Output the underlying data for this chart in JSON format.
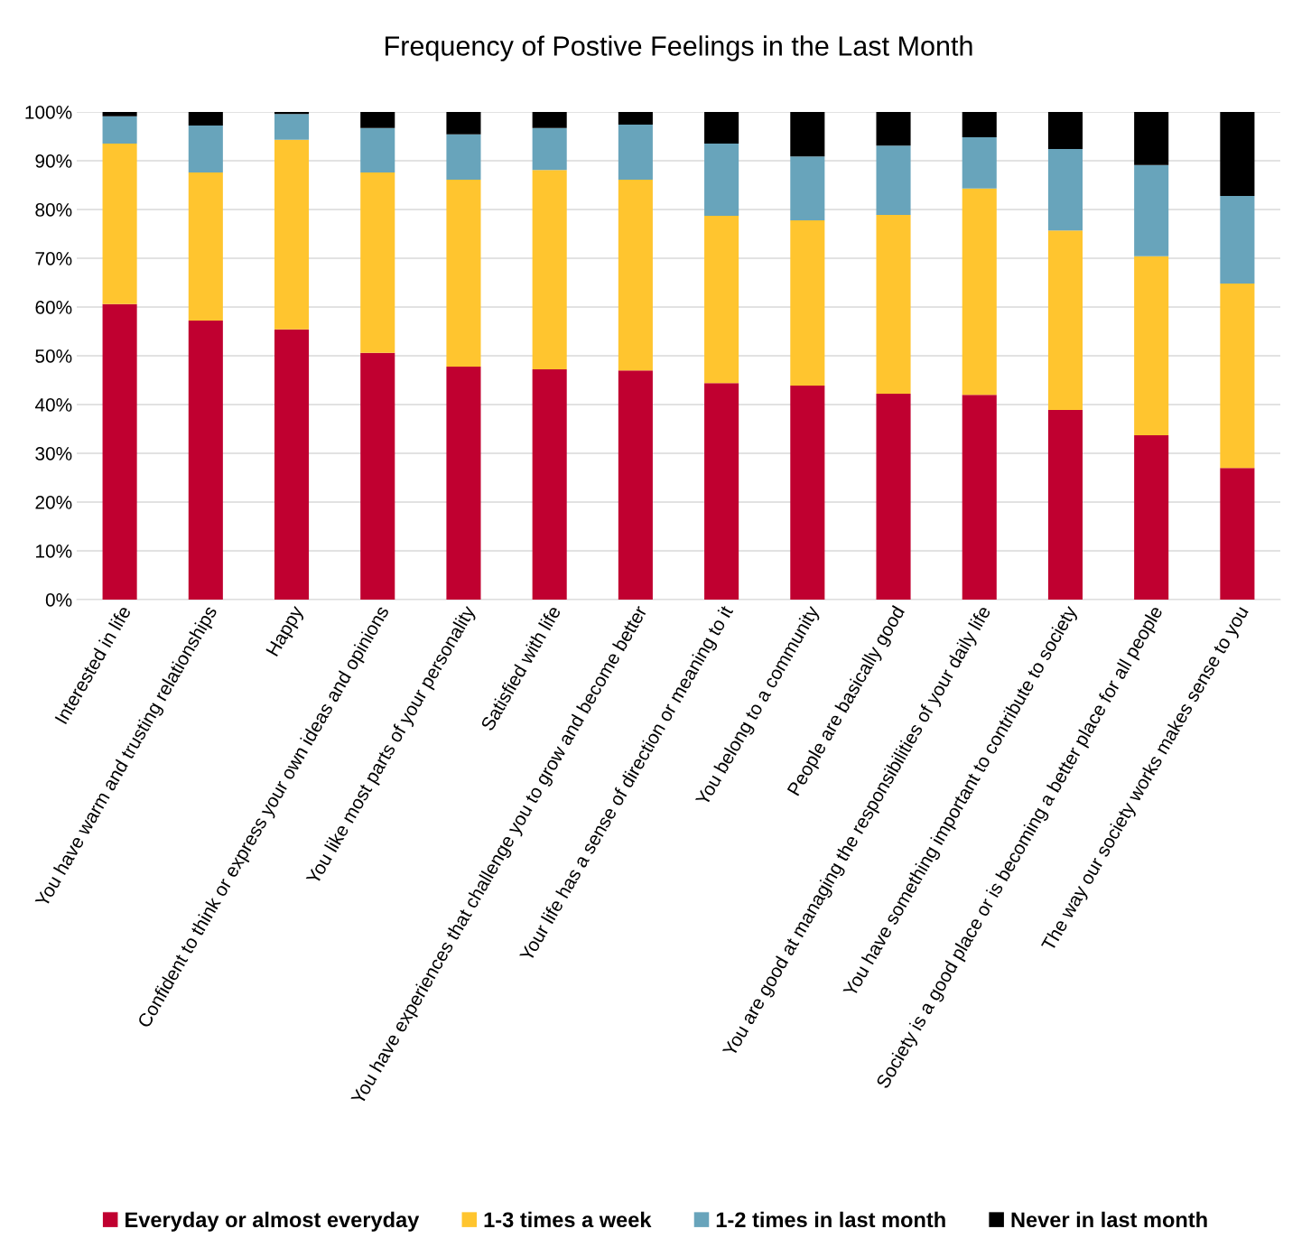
{
  "chart_data": {
    "type": "bar",
    "title": "Frequency of Postive Feelings in the Last Month",
    "stacked": true,
    "categories": [
      "Interested in life",
      "You have warm and trusting relationships",
      "Happy",
      "Confident to think or express your own ideas and opinions",
      "You like most parts of your personality",
      "Satisfied with life",
      "You have experiences that challenge you to grow and become better",
      "Your life has a sense of direction or meaning to it",
      "You belong to a community",
      "People are basically good",
      "You are good at managing the responsibilities of your daily life",
      "You have something important to contribute to society",
      "Society is a good place or is becoming a better place for all people",
      "The way our society works makes sense to you"
    ],
    "series": [
      {
        "name": "Everyday or almost everyday",
        "color": "#c00030",
        "values": [
          60.6,
          57.2,
          55.4,
          50.6,
          47.8,
          47.2,
          47.0,
          44.4,
          43.9,
          42.2,
          42.0,
          38.9,
          33.7,
          27.0
        ]
      },
      {
        "name": "1-3 times a week",
        "color": "#ffc52f",
        "values": [
          32.9,
          30.4,
          38.9,
          37.0,
          38.3,
          40.9,
          39.1,
          34.3,
          33.9,
          36.7,
          42.3,
          36.8,
          36.7,
          37.8
        ]
      },
      {
        "name": "1-2 times in last month",
        "color": "#68a4bb",
        "values": [
          5.6,
          9.6,
          5.3,
          9.1,
          9.3,
          8.6,
          11.3,
          14.8,
          13.1,
          14.2,
          10.5,
          16.7,
          18.7,
          18.0
        ]
      },
      {
        "name": "Never in last month",
        "color": "#000000",
        "values": [
          0.9,
          2.8,
          0.4,
          3.3,
          4.6,
          3.3,
          2.6,
          6.5,
          9.1,
          6.9,
          5.2,
          7.6,
          10.9,
          17.2
        ]
      }
    ],
    "ylim": [
      0,
      100
    ],
    "yticks": [
      {
        "value": 0,
        "label": "0%"
      },
      {
        "value": 10,
        "label": "10%"
      },
      {
        "value": 20,
        "label": "20%"
      },
      {
        "value": 30,
        "label": "30%"
      },
      {
        "value": 40,
        "label": "40%"
      },
      {
        "value": 50,
        "label": "50%"
      },
      {
        "value": 60,
        "label": "60%"
      },
      {
        "value": 70,
        "label": "70%"
      },
      {
        "value": 80,
        "label": "80%"
      },
      {
        "value": 90,
        "label": "90%"
      },
      {
        "value": 100,
        "label": "100%"
      }
    ],
    "grid": "y",
    "legend": "bottom"
  }
}
